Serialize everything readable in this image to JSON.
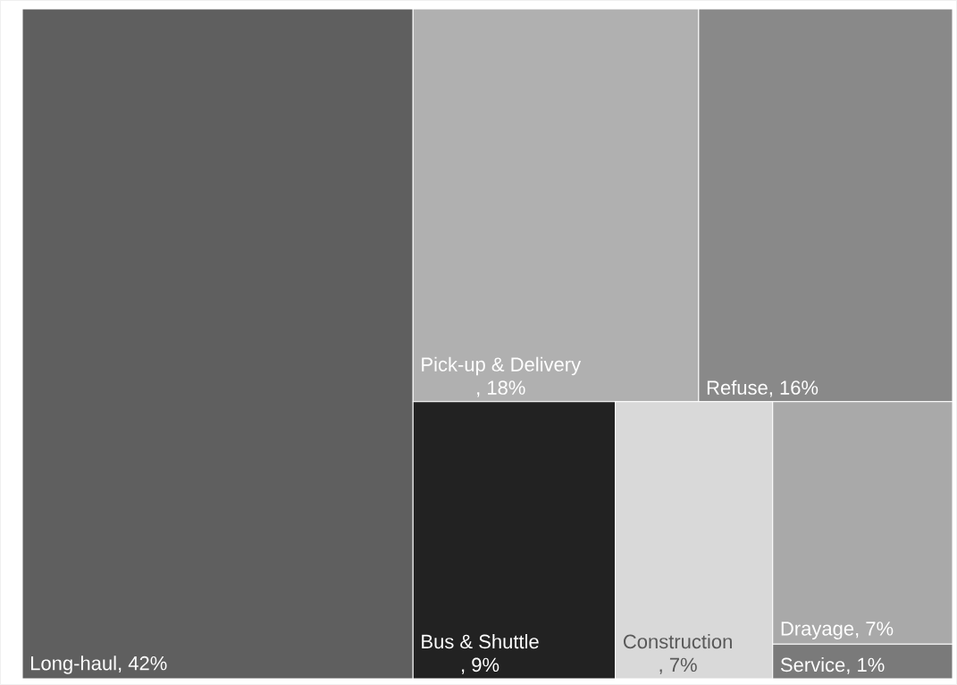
{
  "chart_data": {
    "type": "other",
    "categories": [
      "Long-haul",
      "Pick-up & Delivery",
      "Refuse",
      "Bus & Shuttle",
      "Construction",
      "Drayage",
      "Service"
    ],
    "values": [
      42,
      18,
      16,
      9,
      7,
      7,
      1
    ],
    "value_labels": [
      ", 42%",
      ", 18%",
      ", 16%",
      ", 9%",
      ", 7%",
      ", 7%",
      ", 1%"
    ],
    "colors": [
      "#5f5f5f",
      "#b0b0b0",
      "#898989",
      "#222222",
      "#d9d9d9",
      "#a9a9a9",
      "#7a7a7a"
    ]
  }
}
